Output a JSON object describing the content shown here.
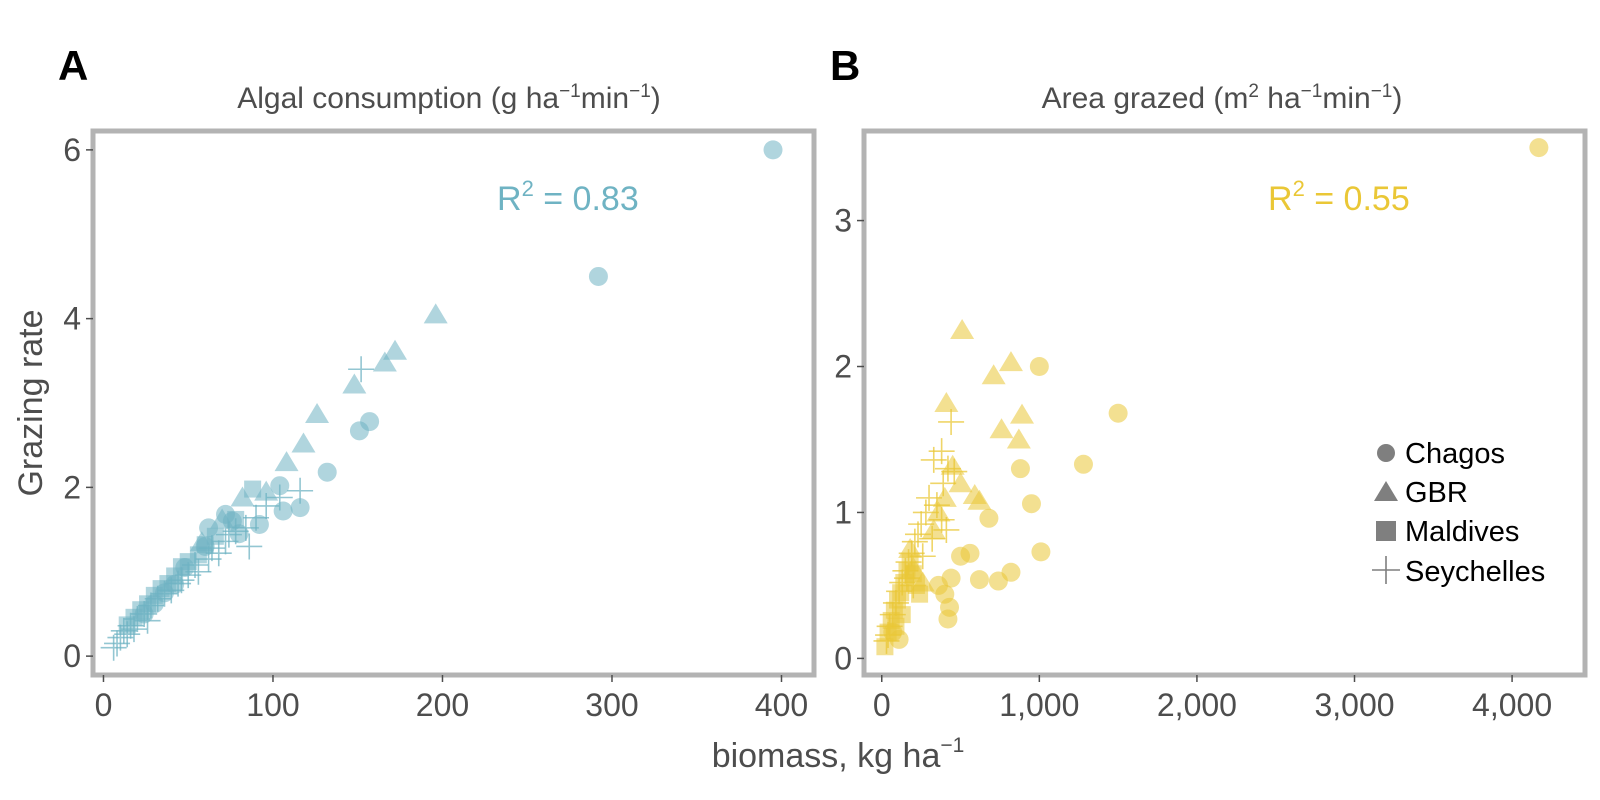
{
  "figure": {
    "xlabel_main": "biomass, kg ha",
    "xlabel_sup": "−1",
    "ylabel": "Grazing rate"
  },
  "legend": {
    "items": [
      {
        "label": "Chagos",
        "shape": "circle"
      },
      {
        "label": "GBR",
        "shape": "triangle"
      },
      {
        "label": "Maldives",
        "shape": "square"
      },
      {
        "label": "Seychelles",
        "shape": "cross"
      }
    ]
  },
  "chart_data": [
    {
      "type": "scatter",
      "panel": "A",
      "title_parts": [
        "Algal consumption (g ha",
        "−1",
        "min",
        "−1",
        ")"
      ],
      "color": "#6fb3c3",
      "annotation": {
        "prefix": "R",
        "sup": "2",
        "suffix": " = 0.83"
      },
      "xlim": [
        -5,
        418
      ],
      "ylim": [
        -0.2,
        6.2
      ],
      "xticks": [
        0,
        100,
        200,
        300,
        400
      ],
      "xtick_labels": [
        "0",
        "100",
        "200",
        "300",
        "400"
      ],
      "yticks": [
        0,
        2,
        4,
        6
      ],
      "ytick_labels": [
        "0",
        "2",
        "4",
        "6"
      ],
      "series": [
        {
          "name": "Chagos",
          "shape": "circle",
          "points": [
            [
              395,
              6.0
            ],
            [
              292,
              4.5
            ],
            [
              157,
              2.78
            ],
            [
              151,
              2.67
            ],
            [
              132,
              2.18
            ],
            [
              116,
              1.76
            ],
            [
              104,
              2.02
            ],
            [
              106,
              1.72
            ],
            [
              92,
              1.56
            ],
            [
              76,
              1.6
            ],
            [
              72,
              1.68
            ],
            [
              62,
              1.52
            ],
            [
              80,
              1.45
            ],
            [
              60,
              1.3
            ],
            [
              48,
              1.05
            ],
            [
              42,
              0.85
            ],
            [
              36,
              0.75
            ],
            [
              30,
              0.62
            ],
            [
              24,
              0.5
            ]
          ]
        },
        {
          "name": "GBR",
          "shape": "triangle",
          "points": [
            [
              196,
              4.05
            ],
            [
              172,
              3.62
            ],
            [
              166,
              3.48
            ],
            [
              148,
              3.22
            ],
            [
              126,
              2.87
            ],
            [
              118,
              2.52
            ],
            [
              108,
              2.3
            ],
            [
              96,
              1.95
            ],
            [
              82,
              1.88
            ],
            [
              70,
              1.62
            ],
            [
              58,
              1.35
            ]
          ]
        },
        {
          "name": "Maldives",
          "shape": "square",
          "points": [
            [
              88,
              1.98
            ],
            [
              78,
              1.62
            ],
            [
              66,
              1.42
            ],
            [
              60,
              1.32
            ],
            [
              56,
              1.2
            ],
            [
              50,
              1.12
            ],
            [
              46,
              1.06
            ],
            [
              42,
              0.95
            ],
            [
              38,
              0.86
            ],
            [
              34,
              0.8
            ],
            [
              30,
              0.72
            ],
            [
              26,
              0.62
            ],
            [
              22,
              0.55
            ],
            [
              18,
              0.46
            ],
            [
              14,
              0.37
            ]
          ]
        },
        {
          "name": "Seychelles",
          "shape": "cross",
          "points": [
            [
              152,
              3.4
            ],
            [
              116,
              1.96
            ],
            [
              104,
              1.88
            ],
            [
              96,
              1.78
            ],
            [
              90,
              1.64
            ],
            [
              84,
              1.52
            ],
            [
              78,
              1.48
            ],
            [
              72,
              1.36
            ],
            [
              86,
              1.3
            ],
            [
              68,
              1.22
            ],
            [
              62,
              1.15
            ],
            [
              56,
              1.0
            ],
            [
              50,
              0.96
            ],
            [
              44,
              0.86
            ],
            [
              40,
              0.78
            ],
            [
              36,
              0.74
            ],
            [
              32,
              0.68
            ],
            [
              28,
              0.6
            ],
            [
              24,
              0.5
            ],
            [
              20,
              0.44
            ],
            [
              16,
              0.36
            ],
            [
              12,
              0.3
            ],
            [
              10,
              0.22
            ],
            [
              8,
              0.15
            ],
            [
              6,
              0.1
            ],
            [
              14,
              0.26
            ],
            [
              18,
              0.32
            ],
            [
              26,
              0.42
            ],
            [
              46,
              0.9
            ],
            [
              64,
              1.28
            ],
            [
              74,
              1.44
            ],
            [
              54,
              1.08
            ]
          ]
        }
      ]
    },
    {
      "type": "scatter",
      "panel": "B",
      "title_parts": [
        "Area grazed (m",
        "2",
        " ha",
        "−1",
        "min",
        "−1",
        ")"
      ],
      "color": "#eac736",
      "annotation": {
        "prefix": "R",
        "sup": "2",
        "suffix": " = 0.55"
      },
      "xlim": [
        -100,
        4450
      ],
      "ylim": [
        -0.1,
        3.6
      ],
      "xticks": [
        0,
        1000,
        2000,
        3000,
        4000
      ],
      "xtick_labels": [
        "0",
        "1,000",
        "2,000",
        "3,000",
        "4,000"
      ],
      "yticks": [
        0,
        1,
        2,
        3
      ],
      "ytick_labels": [
        "0",
        "1",
        "2",
        "3"
      ],
      "series": [
        {
          "name": "Chagos",
          "shape": "circle",
          "points": [
            [
              4170,
              3.5
            ],
            [
              1000,
              2.0
            ],
            [
              1500,
              1.68
            ],
            [
              1280,
              1.33
            ],
            [
              880,
              1.3
            ],
            [
              950,
              1.06
            ],
            [
              1010,
              0.73
            ],
            [
              820,
              0.59
            ],
            [
              740,
              0.53
            ],
            [
              620,
              0.54
            ],
            [
              680,
              0.96
            ],
            [
              560,
              0.72
            ],
            [
              500,
              0.7
            ],
            [
              440,
              0.55
            ],
            [
              400,
              0.44
            ],
            [
              430,
              0.35
            ],
            [
              420,
              0.27
            ],
            [
              360,
              0.5
            ],
            [
              110,
              0.13
            ],
            [
              70,
              0.18
            ]
          ]
        },
        {
          "name": "GBR",
          "shape": "triangle",
          "points": [
            [
              510,
              2.25
            ],
            [
              820,
              2.03
            ],
            [
              710,
              1.94
            ],
            [
              890,
              1.67
            ],
            [
              760,
              1.57
            ],
            [
              870,
              1.5
            ],
            [
              410,
              1.75
            ],
            [
              450,
              1.32
            ],
            [
              500,
              1.2
            ],
            [
              400,
              1.1
            ],
            [
              590,
              1.12
            ],
            [
              620,
              1.08
            ],
            [
              360,
              1.0
            ],
            [
              330,
              0.88
            ],
            [
              180,
              0.75
            ],
            [
              200,
              0.62
            ],
            [
              260,
              0.52
            ]
          ]
        },
        {
          "name": "Maldives",
          "shape": "square",
          "points": [
            [
              20,
              0.08
            ],
            [
              40,
              0.18
            ],
            [
              60,
              0.26
            ],
            [
              80,
              0.33
            ],
            [
              100,
              0.4
            ],
            [
              120,
              0.45
            ],
            [
              140,
              0.52
            ],
            [
              160,
              0.6
            ],
            [
              180,
              0.66
            ],
            [
              200,
              0.58
            ],
            [
              220,
              0.5
            ],
            [
              240,
              0.44
            ],
            [
              90,
              0.22
            ],
            [
              130,
              0.3
            ]
          ]
        },
        {
          "name": "Seychelles",
          "shape": "cross",
          "points": [
            [
              440,
              1.62
            ],
            [
              380,
              1.42
            ],
            [
              330,
              1.36
            ],
            [
              420,
              1.3
            ],
            [
              390,
              1.2
            ],
            [
              460,
              1.28
            ],
            [
              300,
              1.1
            ],
            [
              350,
              1.05
            ],
            [
              280,
              1.0
            ],
            [
              250,
              0.92
            ],
            [
              230,
              0.85
            ],
            [
              210,
              0.8
            ],
            [
              190,
              0.72
            ],
            [
              170,
              0.66
            ],
            [
              150,
              0.6
            ],
            [
              130,
              0.52
            ],
            [
              110,
              0.46
            ],
            [
              90,
              0.38
            ],
            [
              70,
              0.3
            ],
            [
              50,
              0.22
            ],
            [
              40,
              0.16
            ],
            [
              30,
              0.12
            ],
            [
              160,
              0.55
            ],
            [
              200,
              0.5
            ],
            [
              260,
              0.7
            ],
            [
              320,
              0.82
            ],
            [
              380,
              0.95
            ],
            [
              410,
              0.88
            ]
          ]
        }
      ]
    }
  ]
}
